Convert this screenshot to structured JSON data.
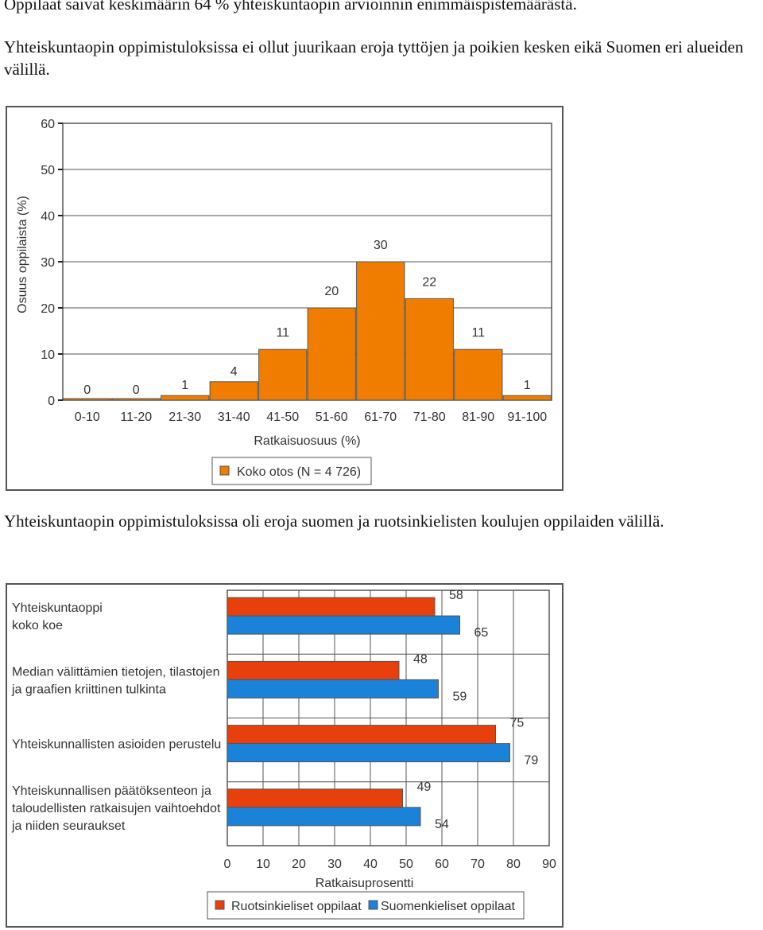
{
  "paragraphs": {
    "p1": "Oppilaat saivat keskimäärin 64 % yhteiskuntaopin arvioinnin enimmäispistemäärästä.",
    "p2": "Yhteiskuntaopin oppimistuloksissa ei ollut juurikaan eroja tyttöjen ja poikien kesken eikä Suomen eri alueiden välillä.",
    "p3": "Yhteiskuntaopin oppimistuloksissa oli eroja suomen ja ruotsinkielisten koulujen oppilaiden välillä."
  },
  "chart_data": [
    {
      "type": "bar",
      "categories": [
        "0-10",
        "11-20",
        "21-30",
        "31-40",
        "41-50",
        "51-60",
        "61-70",
        "71-80",
        "81-90",
        "91-100"
      ],
      "series": [
        {
          "name": "Koko otos (N = 4 726)",
          "values": [
            0,
            0,
            1,
            4,
            11,
            20,
            30,
            22,
            11,
            1
          ],
          "color": "#f07d00"
        }
      ],
      "xlabel": "Ratkaisuosuus (%)",
      "ylabel": "Osuus oppilaista (%)",
      "ylim": [
        0,
        60
      ],
      "yticks": [
        0,
        10,
        20,
        30,
        40,
        50,
        60
      ],
      "grid": true,
      "legend": "bottom"
    },
    {
      "type": "bar",
      "orientation": "horizontal",
      "categories": [
        [
          "Yhteiskuntaoppi",
          "koko koe"
        ],
        [
          "Median välittämien tietojen, tilastojen",
          "ja graafien kriittinen tulkinta"
        ],
        [
          "Yhteiskunnallisten asioiden perustelu"
        ],
        [
          "Yhteiskunnallisen päätöksenteon ja",
          "taloudellisten ratkaisujen vaihtoehdot",
          "ja niiden seuraukset"
        ]
      ],
      "series": [
        {
          "name": "Ruotsinkieliset oppilaat",
          "values": [
            58,
            48,
            75,
            49
          ],
          "color": "#e8400c"
        },
        {
          "name": "Suomenkieliset oppilaat",
          "values": [
            65,
            59,
            79,
            54
          ],
          "color": "#1a82d8"
        }
      ],
      "xlabel": "Ratkaisuprosentti",
      "xlim": [
        0,
        90
      ],
      "xticks": [
        0,
        10,
        20,
        30,
        40,
        50,
        60,
        70,
        80,
        90
      ],
      "grid": true,
      "legend": "bottom"
    }
  ]
}
